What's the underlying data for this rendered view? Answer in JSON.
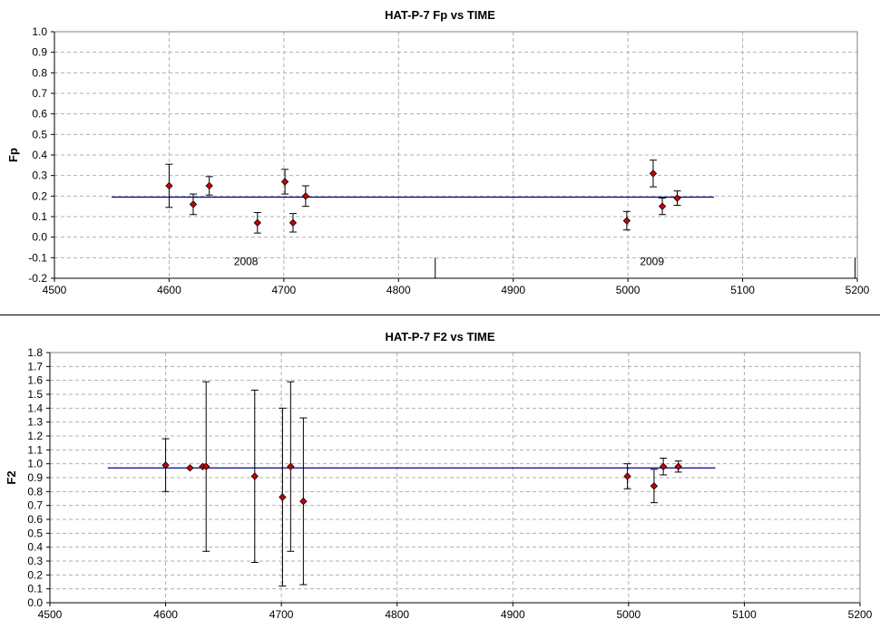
{
  "chart_data": [
    {
      "type": "scatter",
      "title": "HAT-P-7 Fp vs TIME",
      "xlabel": "",
      "ylabel": "Fp",
      "xlim": [
        4500,
        5200
      ],
      "ylim": [
        -0.2,
        1.0
      ],
      "grid": true,
      "x_ticks": [
        "4500",
        "4600",
        "4700",
        "4800",
        "4900",
        "5000",
        "5100",
        "5200"
      ],
      "y_ticks": [
        "-0.2",
        "-0.1",
        "0.0",
        "0.1",
        "0.2",
        "0.3",
        "0.4",
        "0.5",
        "0.6",
        "0.7",
        "0.8",
        "0.9",
        "1.0"
      ],
      "points": [
        {
          "x": 4600,
          "y": 0.25,
          "lo": 0.145,
          "hi": 0.355
        },
        {
          "x": 4621,
          "y": 0.16,
          "lo": 0.11,
          "hi": 0.21
        },
        {
          "x": 4635,
          "y": 0.25,
          "lo": 0.205,
          "hi": 0.295
        },
        {
          "x": 4677,
          "y": 0.07,
          "lo": 0.02,
          "hi": 0.12
        },
        {
          "x": 4701,
          "y": 0.27,
          "lo": 0.21,
          "hi": 0.33
        },
        {
          "x": 4708,
          "y": 0.07,
          "lo": 0.025,
          "hi": 0.115
        },
        {
          "x": 4719,
          "y": 0.2,
          "lo": 0.15,
          "hi": 0.25
        },
        {
          "x": 4999,
          "y": 0.08,
          "lo": 0.035,
          "hi": 0.125
        },
        {
          "x": 5022,
          "y": 0.31,
          "lo": 0.245,
          "hi": 0.375
        },
        {
          "x": 5030,
          "y": 0.15,
          "lo": 0.11,
          "hi": 0.19
        },
        {
          "x": 5043,
          "y": 0.19,
          "lo": 0.155,
          "hi": 0.225
        }
      ],
      "reference_line": {
        "y": 0.195,
        "x_start": 4550,
        "x_end": 5075,
        "color": "#00008B"
      },
      "year_markers": [
        {
          "label": "2008",
          "label_x": 4667,
          "divider_x": 4832
        },
        {
          "label": "2009",
          "label_x": 5021,
          "divider_x": 5198
        }
      ],
      "marker_color": "#CC0000"
    },
    {
      "type": "scatter",
      "title": "HAT-P-7 F2 vs TIME",
      "xlabel": "",
      "ylabel": "F2",
      "xlim": [
        4500,
        5200
      ],
      "ylim": [
        0.0,
        1.8
      ],
      "grid": true,
      "x_ticks": [
        "4500",
        "4600",
        "4700",
        "4800",
        "4900",
        "5000",
        "5100",
        "5200"
      ],
      "y_ticks": [
        "0.0",
        "0.1",
        "0.2",
        "0.3",
        "0.4",
        "0.5",
        "0.6",
        "0.7",
        "0.8",
        "0.9",
        "1.0",
        "1.1",
        "1.2",
        "1.3",
        "1.4",
        "1.5",
        "1.6",
        "1.7",
        "1.8"
      ],
      "points": [
        {
          "x": 4600,
          "y": 0.99,
          "lo": 0.8,
          "hi": 1.18
        },
        {
          "x": 4621,
          "y": 0.97,
          "lo": 0.97,
          "hi": 0.97
        },
        {
          "x": 4632,
          "y": 0.98,
          "lo": 0.98,
          "hi": 0.98
        },
        {
          "x": 4635,
          "y": 0.98,
          "lo": 0.37,
          "hi": 1.59
        },
        {
          "x": 4677,
          "y": 0.91,
          "lo": 0.29,
          "hi": 1.53
        },
        {
          "x": 4701,
          "y": 0.76,
          "lo": 0.12,
          "hi": 1.4
        },
        {
          "x": 4708,
          "y": 0.98,
          "lo": 0.37,
          "hi": 1.59
        },
        {
          "x": 4719,
          "y": 0.73,
          "lo": 0.13,
          "hi": 1.33
        },
        {
          "x": 4999,
          "y": 0.91,
          "lo": 0.82,
          "hi": 1.0
        },
        {
          "x": 5022,
          "y": 0.84,
          "lo": 0.72,
          "hi": 0.96
        },
        {
          "x": 5030,
          "y": 0.98,
          "lo": 0.92,
          "hi": 1.04
        },
        {
          "x": 5043,
          "y": 0.98,
          "lo": 0.94,
          "hi": 1.02
        }
      ],
      "reference_line": {
        "y": 0.97,
        "x_start": 4550,
        "x_end": 5075,
        "color": "#00008B"
      },
      "marker_color": "#CC0000"
    }
  ]
}
